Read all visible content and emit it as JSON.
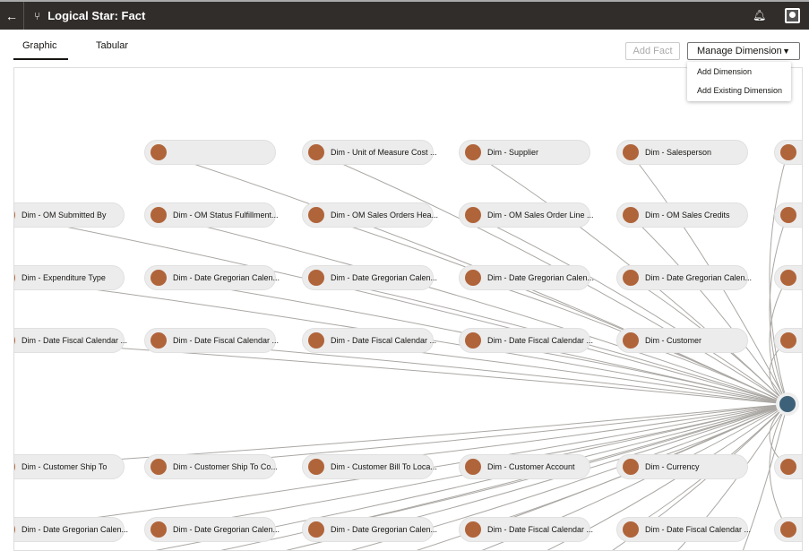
{
  "header": {
    "title": "Logical Star: Fact",
    "back_icon": "arrow-left-icon",
    "type_icon": "branch-icon",
    "bell_icon": "bell-icon",
    "user_icon": "user-icon"
  },
  "tabs": [
    {
      "label": "Graphic",
      "active": true
    },
    {
      "label": "Tabular",
      "active": false
    }
  ],
  "toolbar": {
    "add_fact": "Add Fact",
    "manage_dimension": "Manage Dimension"
  },
  "menu": [
    "Add Dimension",
    "Add Existing Dimension"
  ],
  "colors": {
    "dimension_node": "#b0643a",
    "fact_node": "#3d6178",
    "header": "#312d2a"
  },
  "rows": [
    [
      "",
      "Dim - Unit of Measure Cost ...",
      "Dim - Supplier",
      "Dim - Salesperson",
      ""
    ],
    [
      "Dim - OM Submitted By",
      "Dim - OM Status Fulfillment...",
      "Dim - OM Sales Orders Hea...",
      "Dim - OM Sales Order Line ...",
      "Dim - OM Sales Credits",
      ""
    ],
    [
      "Dim - Expenditure Type",
      "Dim - Date Gregorian Calen...",
      "Dim - Date Gregorian Calen...",
      "Dim - Date Gregorian Calen...",
      "Dim - Date Gregorian Calen...",
      ""
    ],
    [
      "Dim - Date Fiscal Calendar ...",
      "Dim - Date Fiscal Calendar ...",
      "Dim - Date Fiscal Calendar ...",
      "Dim - Date Fiscal Calendar ...",
      "Dim - Customer",
      ""
    ],
    [
      "Dim - Customer Ship To",
      "Dim - Customer Ship To Co...",
      "Dim - Customer Bill To Loca...",
      "Dim - Customer Account",
      "Dim - Currency",
      ""
    ],
    [
      "Dim - Date Gregorian Calen...",
      "Dim - Date Gregorian Calen...",
      "Dim - Date Gregorian Calen...",
      "Dim - Date Fiscal Calendar ...",
      "Dim - Date Fiscal Calendar ...",
      ""
    ]
  ]
}
